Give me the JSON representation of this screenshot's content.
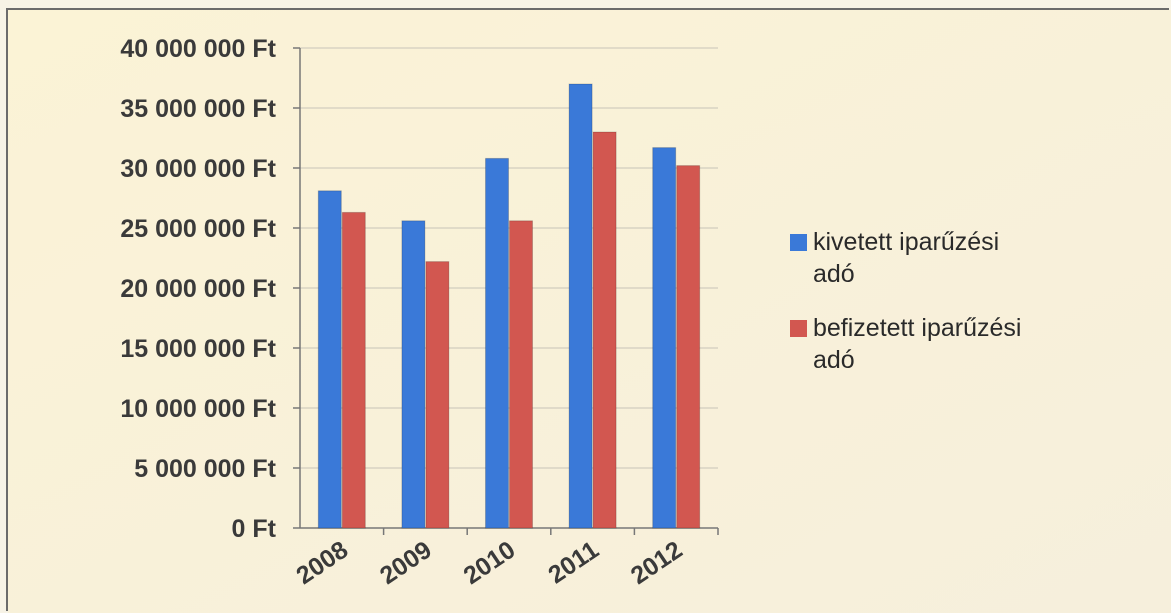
{
  "chart_data": {
    "type": "bar",
    "categories": [
      "2008",
      "2009",
      "2010",
      "2011",
      "2012"
    ],
    "series": [
      {
        "name": "kivetett iparűzési adó",
        "name_lines": [
          "kivetett iparűzési",
          "adó"
        ],
        "color": "#3a79d8",
        "values": [
          28100000,
          25600000,
          30800000,
          37000000,
          31700000
        ]
      },
      {
        "name": "befizetett iparűzési adó",
        "name_lines": [
          "befizetett iparűzési",
          "adó"
        ],
        "color": "#d25750",
        "values": [
          26300000,
          22200000,
          25600000,
          33000000,
          30200000
        ]
      }
    ],
    "y_ticks": [
      "0 Ft",
      "5 000 000 Ft",
      "10 000 000 Ft",
      "15 000 000 Ft",
      "20 000 000 Ft",
      "25 000 000 Ft",
      "30 000 000 Ft",
      "35 000 000 Ft",
      "40 000 000 Ft"
    ],
    "ylim": [
      0,
      40000000
    ],
    "y_step": 5000000,
    "grid": true,
    "legend_position": "right",
    "title": "",
    "xlabel": "",
    "ylabel": ""
  }
}
